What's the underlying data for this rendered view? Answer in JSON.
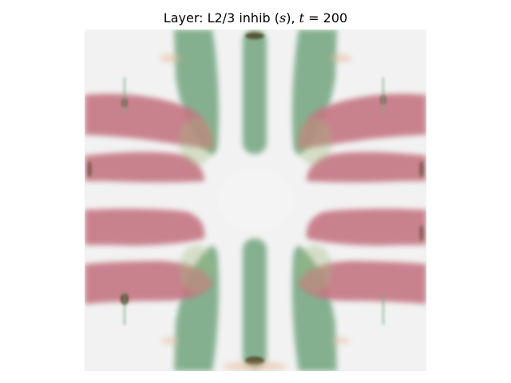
{
  "title": {
    "prefix": "Layer: L2/3 inhib (",
    "s_var": "s",
    "mid": "), ",
    "t_var": "t",
    "suffix": " = 200"
  },
  "map": {
    "background_color": "#f2f2f2",
    "primary_color": "#7fad8b",
    "secondary_color": "#c47683",
    "dark_color": "#4a3d1e",
    "symmetry": "four-fold mirror symmetric pattern of green vertical bands and rose horizontal lobes around a pale centre"
  }
}
